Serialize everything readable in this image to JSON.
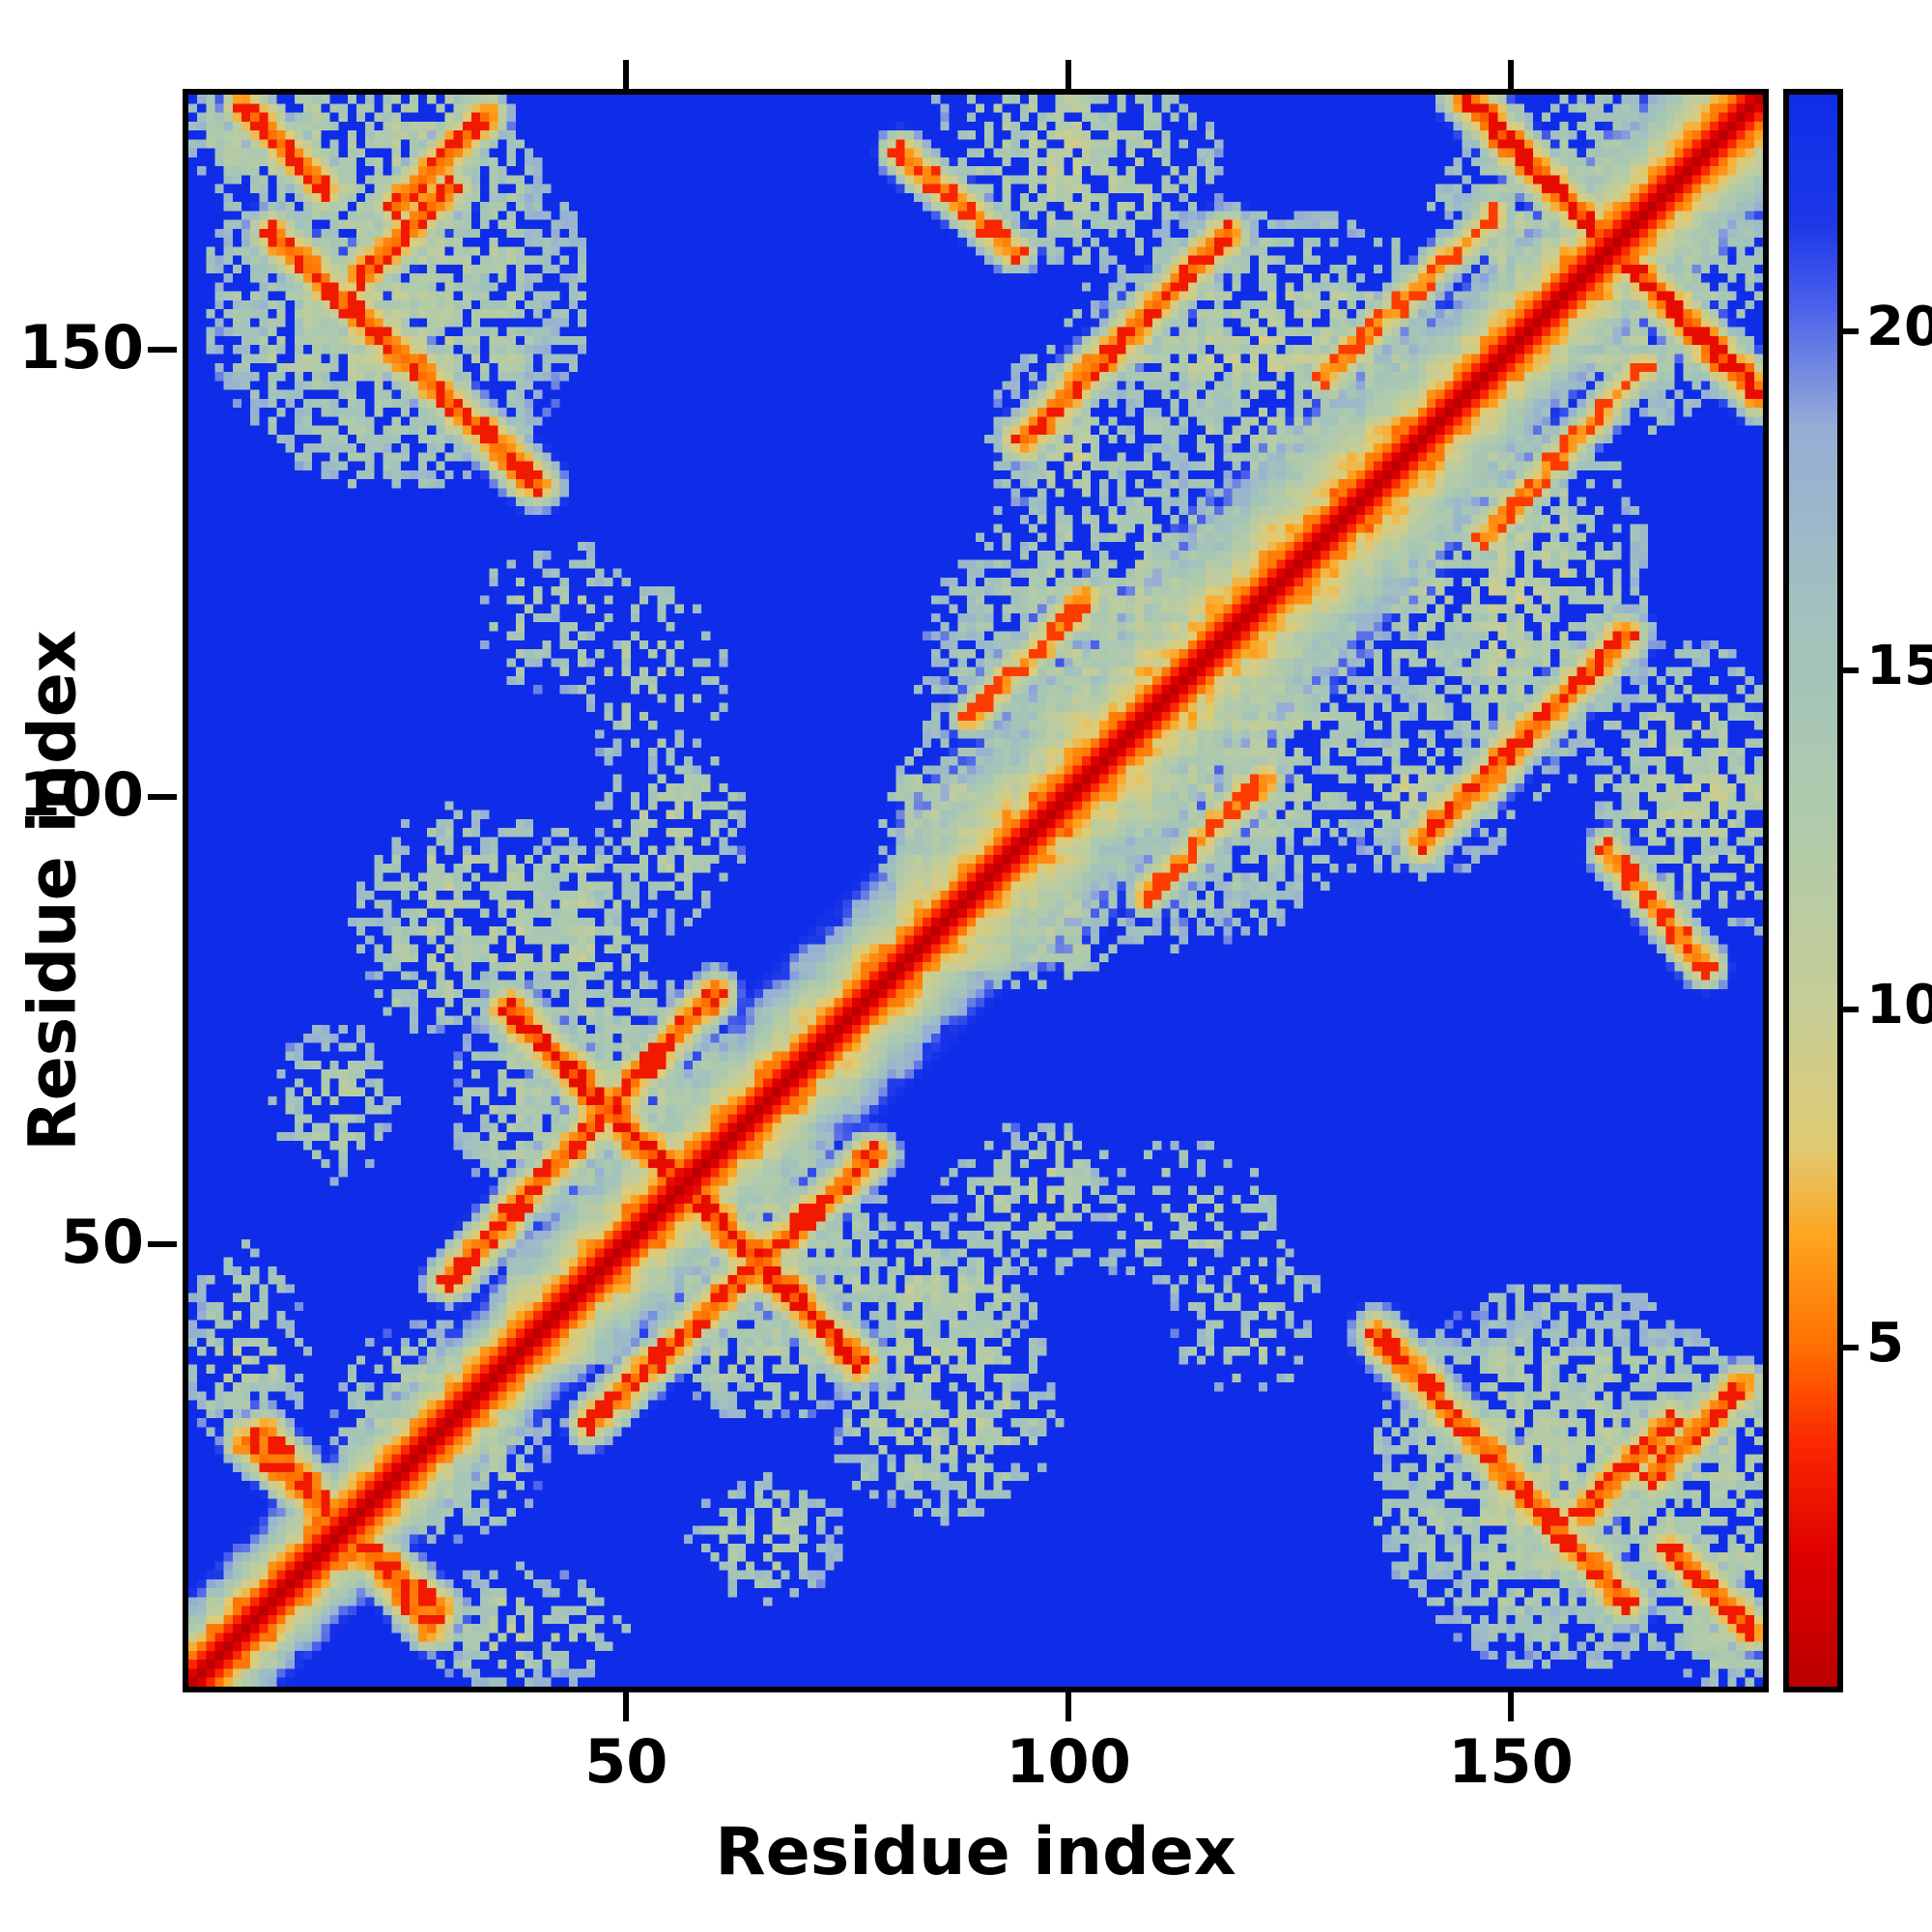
{
  "figure": {
    "background": "#ffffff"
  },
  "chart_data": {
    "type": "heatmap",
    "title": "",
    "xlabel": "Residue index",
    "ylabel": "Residue index",
    "x_ticks": [
      50,
      100,
      150
    ],
    "y_ticks": [
      50,
      100,
      150
    ],
    "n_residues": 178,
    "axis_range": [
      1,
      178
    ],
    "value_range": [
      0,
      23.5
    ],
    "colorbar_ticks": [
      5,
      10,
      15,
      20
    ],
    "colorbar_orientation": "vertical-right, low values (red) at bottom, high values (blue) at top",
    "colormap_stops": [
      [
        0.0,
        "#bb0000"
      ],
      [
        2.0,
        "#e00000"
      ],
      [
        3.6,
        "#fb2800"
      ],
      [
        5.0,
        "#ff6f00"
      ],
      [
        6.6,
        "#ffa41e"
      ],
      [
        8.0,
        "#e0cb74"
      ],
      [
        10.0,
        "#c6cd96"
      ],
      [
        13.0,
        "#aecaad"
      ],
      [
        16.0,
        "#a0c1bf"
      ],
      [
        18.6,
        "#96add6"
      ],
      [
        20.4,
        "#4a60ec"
      ],
      [
        21.6,
        "#1c38e8"
      ],
      [
        23.5,
        "#0f2de8"
      ]
    ],
    "diagonal_halo": [
      [
        1,
        36,
        9
      ],
      [
        36,
        80,
        12
      ],
      [
        80,
        136,
        16
      ],
      [
        136,
        178,
        12
      ]
    ],
    "contact_segments": [
      {
        "x1": 37,
        "y1": 76,
        "x2": 76,
        "y2": 37,
        "d": 4.5,
        "w": 1.6,
        "dot": 0.5
      },
      {
        "x1": 7,
        "y1": 28,
        "x2": 29,
        "y2": 9,
        "d": 5,
        "w": 1.4,
        "dot": 0.5
      },
      {
        "x1": 150,
        "y1": 173,
        "x2": 178,
        "y2": 145,
        "d": 4.5,
        "w": 1.5,
        "dot": 0.5
      },
      {
        "x1": 10,
        "y1": 163,
        "x2": 40,
        "y2": 135,
        "d": 5,
        "w": 1.5,
        "dot": 0.55
      },
      {
        "x1": 30,
        "y1": 46,
        "x2": 60,
        "y2": 78,
        "d": 5,
        "w": 1.4,
        "dot": 0.5
      },
      {
        "x1": 95,
        "y1": 140,
        "x2": 118,
        "y2": 163,
        "d": 5,
        "w": 1.5,
        "dot": 0.5
      },
      {
        "x1": 81,
        "y1": 172,
        "x2": 94,
        "y2": 161,
        "d": 5.5,
        "w": 1.3,
        "dot": 0.55
      },
      {
        "x1": 129,
        "y1": 147,
        "x2": 148,
        "y2": 165,
        "d": 6,
        "w": 1.2,
        "dot": 0.55
      },
      {
        "x1": 89,
        "y1": 109,
        "x2": 102,
        "y2": 122,
        "d": 6,
        "w": 1.3,
        "dot": 0.55
      },
      {
        "x1": 158,
        "y1": 20,
        "x2": 168,
        "y2": 30,
        "d": 5,
        "w": 1.5,
        "dot": 0.5
      },
      {
        "x1": 7,
        "y1": 177,
        "x2": 16,
        "y2": 168,
        "d": 5,
        "w": 1.4,
        "dot": 0.5
      },
      {
        "x1": 24,
        "y1": 166,
        "x2": 34,
        "y2": 176,
        "d": 5,
        "w": 1.4,
        "dot": 0.5
      }
    ],
    "haze_blobs": [
      {
        "cx": 24,
        "cy": 156,
        "rx": 22,
        "ry": 22,
        "d": 12,
        "p": 0.7
      },
      {
        "cx": 10,
        "cy": 174,
        "rx": 10,
        "ry": 8,
        "d": 12,
        "p": 0.7
      },
      {
        "cx": 47,
        "cy": 66,
        "rx": 17,
        "ry": 15,
        "d": 12,
        "p": 0.72
      },
      {
        "cx": 42,
        "cy": 86,
        "rx": 11,
        "ry": 12,
        "d": 12,
        "p": 0.65
      },
      {
        "cx": 86,
        "cy": 30,
        "rx": 13,
        "ry": 11,
        "d": 12.3,
        "p": 0.6
      },
      {
        "cx": 110,
        "cy": 112,
        "rx": 27,
        "ry": 27,
        "d": 12.2,
        "p": 0.68
      },
      {
        "cx": 95,
        "cy": 88,
        "rx": 12,
        "ry": 10,
        "d": 11.8,
        "p": 0.7
      },
      {
        "cx": 122,
        "cy": 150,
        "rx": 23,
        "ry": 16,
        "d": 12.2,
        "p": 0.65
      },
      {
        "cx": 101,
        "cy": 170,
        "rx": 17,
        "ry": 11,
        "d": 12.3,
        "p": 0.6
      },
      {
        "cx": 160,
        "cy": 161,
        "rx": 20,
        "ry": 19,
        "d": 12.2,
        "p": 0.65
      },
      {
        "cx": 53,
        "cy": 113,
        "rx": 9,
        "ry": 11,
        "d": 13,
        "p": 0.35
      },
      {
        "cx": 7,
        "cy": 38,
        "rx": 7,
        "ry": 12,
        "d": 12.5,
        "p": 0.5
      },
      {
        "cx": 140,
        "cy": 100,
        "rx": 11,
        "ry": 9,
        "d": 12.6,
        "p": 0.5
      },
      {
        "cx": 176,
        "cy": 97,
        "rx": 7,
        "ry": 13,
        "d": 13,
        "p": 0.4
      },
      {
        "cx": 29,
        "cy": 29,
        "rx": 13,
        "ry": 13,
        "d": 12.2,
        "p": 0.65
      },
      {
        "cx": 96,
        "cy": 55,
        "rx": 11,
        "ry": 9,
        "d": 12.6,
        "p": 0.5
      },
      {
        "cx": 120,
        "cy": 42,
        "rx": 9,
        "ry": 9,
        "d": 13,
        "p": 0.4
      },
      {
        "cx": 66,
        "cy": 17,
        "rx": 9,
        "ry": 7,
        "d": 12.6,
        "p": 0.5
      },
      {
        "cx": 173,
        "cy": 27,
        "rx": 11,
        "ry": 11,
        "d": 12.3,
        "p": 0.6
      },
      {
        "cx": 152,
        "cy": 120,
        "rx": 8,
        "ry": 8,
        "d": 13,
        "p": 0.4
      }
    ]
  }
}
